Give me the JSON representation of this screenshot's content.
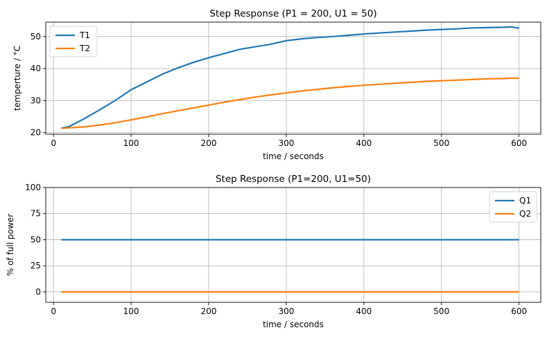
{
  "chart_data": [
    {
      "type": "line",
      "title": "Step Response (P1 = 200, U1 = 50)",
      "xlabel": "time / seconds",
      "ylabel": "temperture / °C",
      "xlim": [
        -10,
        628
      ],
      "ylim": [
        19.5,
        54.5
      ],
      "xticks": [
        0,
        100,
        200,
        300,
        400,
        500,
        600
      ],
      "yticks": [
        20,
        30,
        40,
        50
      ],
      "grid": true,
      "legend_position": "top-left",
      "series": [
        {
          "name": "T1",
          "color": "#1f77b4",
          "x": [
            10,
            20,
            40,
            60,
            80,
            100,
            120,
            140,
            160,
            180,
            200,
            220,
            240,
            260,
            280,
            300,
            320,
            340,
            360,
            380,
            400,
            420,
            440,
            460,
            480,
            500,
            520,
            540,
            560,
            580,
            590,
            600
          ],
          "y": [
            21.4,
            21.9,
            24.4,
            27.2,
            30.1,
            33.4,
            35.8,
            38.2,
            40.2,
            41.9,
            43.4,
            44.7,
            46.0,
            46.8,
            47.6,
            48.7,
            49.3,
            49.7,
            50.0,
            50.4,
            50.8,
            51.1,
            51.4,
            51.7,
            52.0,
            52.2,
            52.4,
            52.7,
            52.8,
            52.9,
            53.0,
            52.6
          ]
        },
        {
          "name": "T2",
          "color": "#ff7f0e",
          "x": [
            10,
            20,
            40,
            60,
            80,
            100,
            120,
            140,
            160,
            180,
            200,
            220,
            240,
            260,
            280,
            300,
            320,
            340,
            360,
            380,
            400,
            420,
            440,
            460,
            480,
            500,
            520,
            540,
            560,
            580,
            590,
            600
          ],
          "y": [
            21.3,
            21.5,
            21.8,
            22.4,
            23.1,
            24.0,
            24.9,
            25.9,
            26.8,
            27.7,
            28.6,
            29.5,
            30.3,
            31.1,
            31.8,
            32.4,
            33.0,
            33.5,
            34.0,
            34.4,
            34.8,
            35.1,
            35.4,
            35.7,
            36.0,
            36.2,
            36.4,
            36.6,
            36.8,
            36.9,
            37.0,
            37.0
          ]
        }
      ]
    },
    {
      "type": "line",
      "title": "Step Response (P1=200, U1=50)",
      "xlabel": "time / seconds",
      "ylabel": "% of full power",
      "xlim": [
        -10,
        628
      ],
      "ylim": [
        -10,
        100
      ],
      "xticks": [
        0,
        100,
        200,
        300,
        400,
        500,
        600
      ],
      "yticks": [
        0,
        25,
        50,
        75,
        100
      ],
      "grid": true,
      "legend_position": "top-right",
      "series": [
        {
          "name": "Q1",
          "color": "#1f77b4",
          "x": [
            10,
            600
          ],
          "y": [
            50,
            50
          ]
        },
        {
          "name": "Q2",
          "color": "#ff7f0e",
          "x": [
            10,
            600
          ],
          "y": [
            0,
            0
          ]
        }
      ]
    }
  ]
}
